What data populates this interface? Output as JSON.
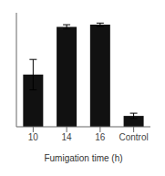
{
  "chart_data": {
    "type": "bar",
    "xlabel": "Fumigation time (h)",
    "categories": [
      "10",
      "14",
      "16",
      "Control"
    ],
    "values": [
      48,
      92,
      94,
      10
    ],
    "errors": [
      14,
      2.0,
      1.5,
      2.5
    ],
    "color": "#111111",
    "ylim": [
      0,
      105
    ],
    "yticks": [],
    "tick_labels": "x"
  }
}
